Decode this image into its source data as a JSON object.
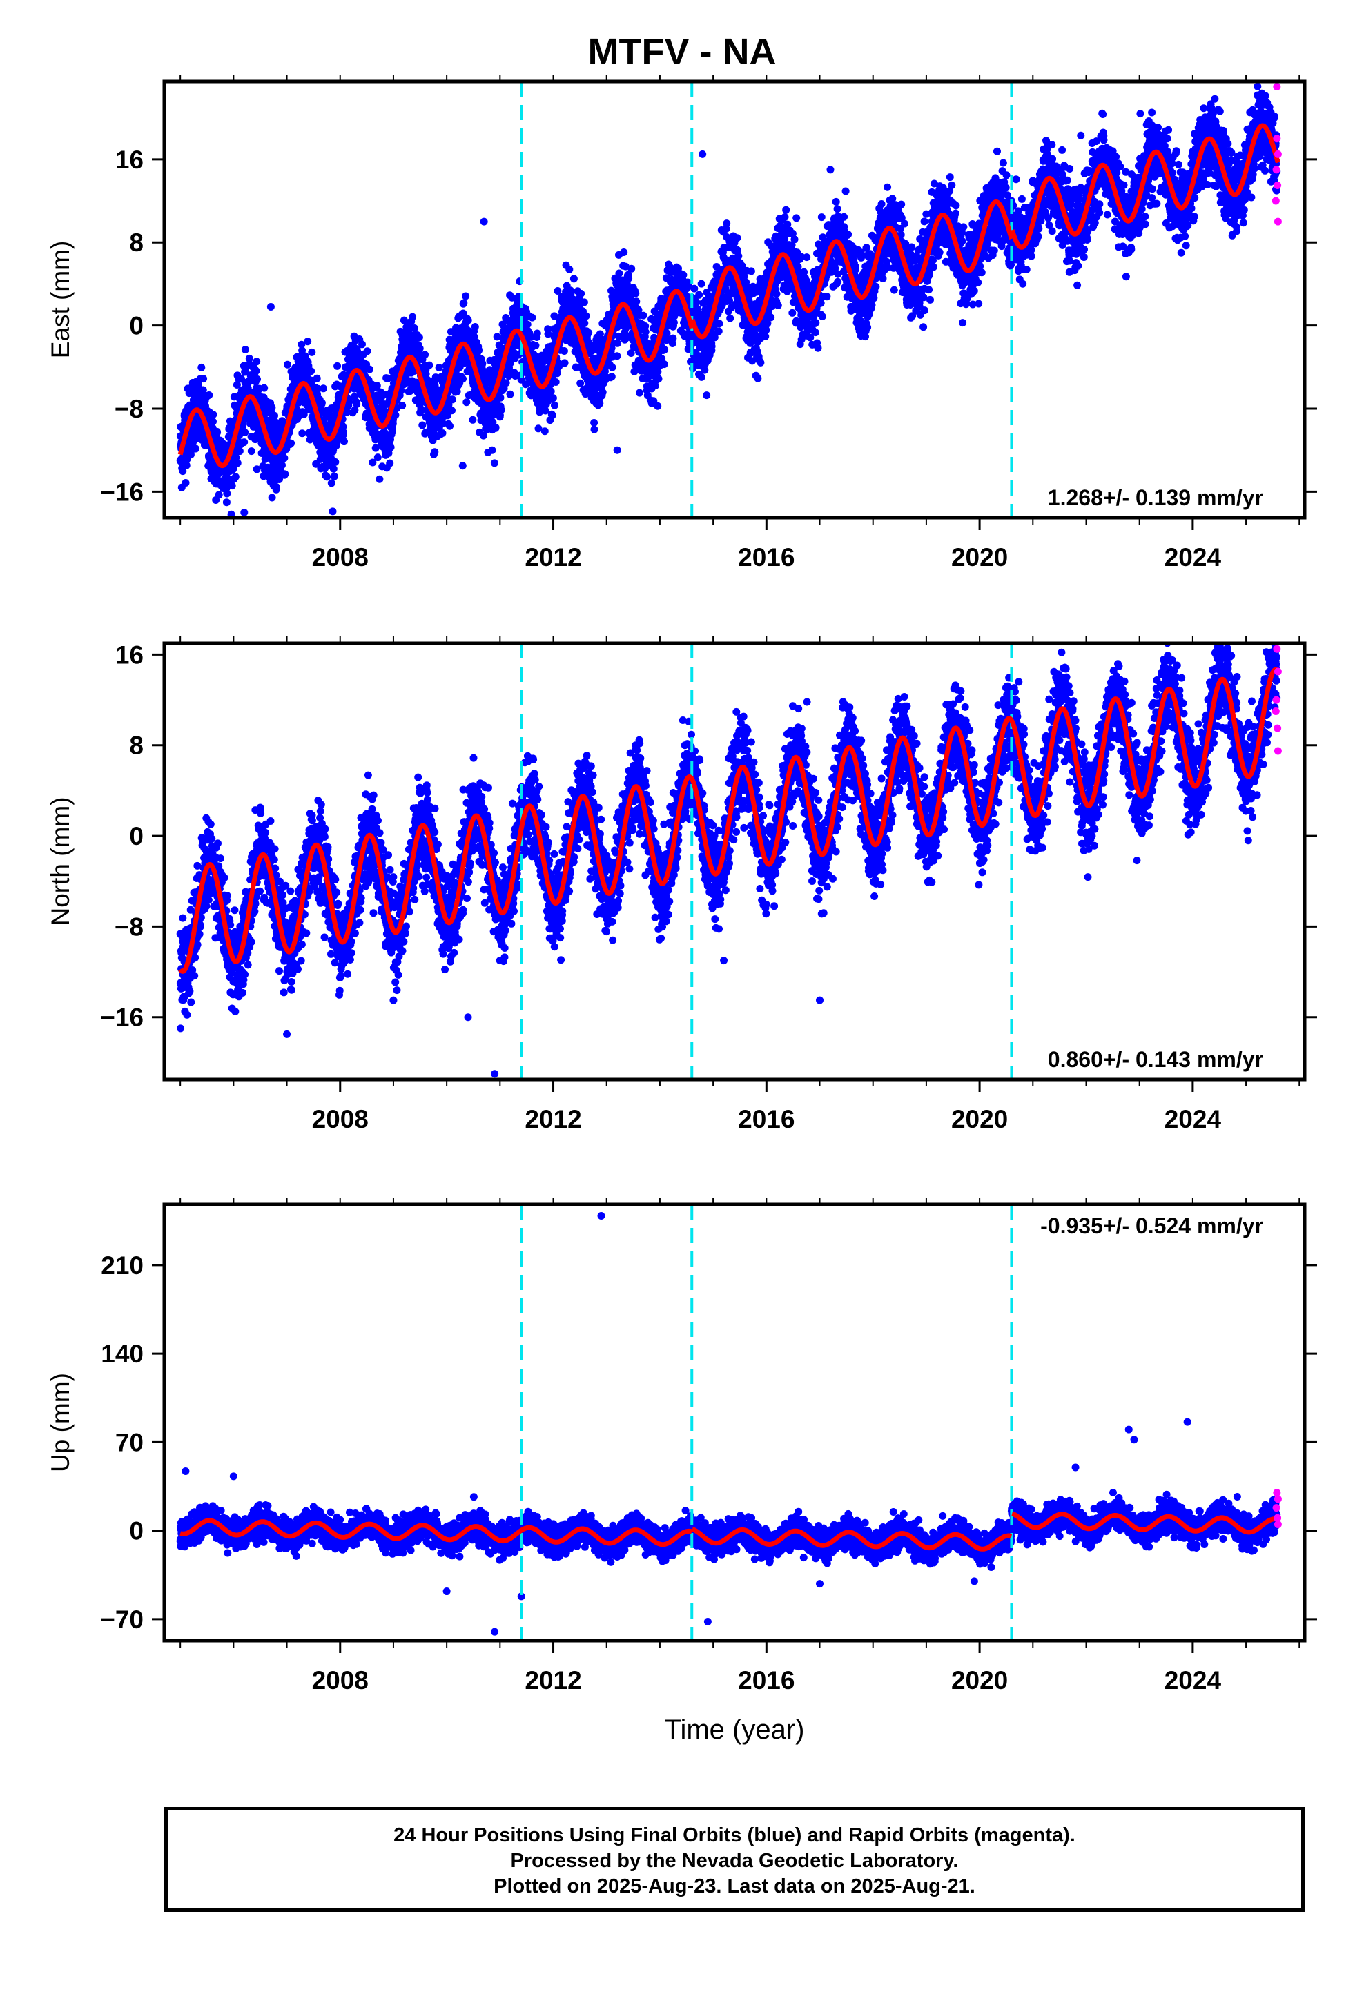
{
  "title": "MTFV - NA",
  "colors": {
    "final_orbits": "#0000ff",
    "rapid_orbits": "#ff00ff",
    "model_fit": "#ff0000",
    "offset_lines": "#00e5ee"
  },
  "chart_data": [
    {
      "type": "scatter",
      "name": "East",
      "ylabel": "East (mm)",
      "xlabel": "",
      "xlim": [
        2004.7,
        2026.1
      ],
      "ylim": [
        -18.5,
        23.5
      ],
      "yticks": [
        -16,
        -8,
        0,
        8,
        16
      ],
      "ytick_labels": [
        "−16",
        "−8",
        "0",
        "8",
        "16"
      ],
      "xticks": [
        2008,
        2012,
        2016,
        2020,
        2024
      ],
      "xtick_labels": [
        "2008",
        "2012",
        "2016",
        "2020",
        "2024"
      ],
      "offset_lines_x": [
        2011.4,
        2014.6,
        2020.6
      ],
      "velocity_label": "1.268+/- 0.139 mm/yr",
      "model": {
        "start_year": 2005.0,
        "end_year": 2025.6,
        "start_value": -11.5,
        "rate": 1.268,
        "amplitude": 3.0,
        "phase_year": 2005.3
      },
      "segment_shifts": [
        0,
        0,
        1.0,
        2.0
      ],
      "scatter_sd": 1.8,
      "outliers": [
        [
          2014.8,
          16.5
        ],
        [
          2017.2,
          15.0
        ],
        [
          2021.9,
          18.3
        ],
        [
          2010.7,
          10.0
        ],
        [
          2013.2,
          -12.0
        ],
        [
          2006.2,
          -18.0
        ],
        [
          2010.3,
          -13.5
        ],
        [
          2006.7,
          1.8
        ]
      ],
      "rapid_points": [
        [
          2025.58,
          23.0
        ],
        [
          2025.58,
          18.0
        ],
        [
          2025.6,
          16.5
        ],
        [
          2025.57,
          15.0
        ],
        [
          2025.59,
          13.5
        ],
        [
          2025.6,
          10.0
        ],
        [
          2025.56,
          12.0
        ]
      ]
    },
    {
      "type": "scatter",
      "name": "North",
      "ylabel": "North (mm)",
      "xlabel": "",
      "xlim": [
        2004.7,
        2026.1
      ],
      "ylim": [
        -21.5,
        17.0
      ],
      "yticks": [
        -16,
        -8,
        0,
        8,
        16
      ],
      "ytick_labels": [
        "−16",
        "−8",
        "0",
        "8",
        "16"
      ],
      "xticks": [
        2008,
        2012,
        2016,
        2020,
        2024
      ],
      "xtick_labels": [
        "2008",
        "2012",
        "2016",
        "2020",
        "2024"
      ],
      "offset_lines_x": [
        2011.4,
        2014.6,
        2020.6
      ],
      "velocity_label": "0.860+/- 0.143 mm/yr",
      "model": {
        "start_year": 2005.0,
        "end_year": 2025.6,
        "start_value": -7.5,
        "rate": 0.86,
        "amplitude": 4.5,
        "phase_year": 2005.55
      },
      "segment_shifts": [
        0,
        0,
        0,
        0
      ],
      "scatter_sd": 1.9,
      "outliers": [
        [
          2010.9,
          -21.0
        ],
        [
          2007.0,
          -17.5
        ],
        [
          2017.0,
          -14.5
        ],
        [
          2010.4,
          -16.0
        ],
        [
          2006.5,
          2.5
        ],
        [
          2015.2,
          -11.0
        ],
        [
          2009.0,
          -14.5
        ]
      ],
      "rapid_points": [
        [
          2025.58,
          16.5
        ],
        [
          2025.6,
          14.5
        ],
        [
          2025.57,
          12.0
        ],
        [
          2025.59,
          9.5
        ],
        [
          2025.6,
          7.5
        ],
        [
          2025.56,
          11.0
        ]
      ]
    },
    {
      "type": "scatter",
      "name": "Up",
      "ylabel": "Up (mm)",
      "xlabel": "Time (year)",
      "xlim": [
        2004.7,
        2026.1
      ],
      "ylim": [
        -87.0,
        258.0
      ],
      "yticks": [
        -70,
        0,
        70,
        140,
        210
      ],
      "ytick_labels": [
        "−70",
        "0",
        "70",
        "140",
        "210"
      ],
      "xticks": [
        2008,
        2012,
        2016,
        2020,
        2024
      ],
      "xtick_labels": [
        "2008",
        "2012",
        "2016",
        "2020",
        "2024"
      ],
      "offset_lines_x": [
        2011.4,
        2014.6,
        2020.6
      ],
      "velocity_label": "-0.935+/- 0.524 mm/yr",
      "model": {
        "start_year": 2005.0,
        "end_year": 2025.6,
        "start_value": 3.0,
        "rate": -0.935,
        "amplitude": 5.5,
        "phase_year": 2005.55
      },
      "segment_shifts": [
        0,
        0,
        2.0,
        20.0
      ],
      "scatter_sd": 5.5,
      "outliers": [
        [
          2012.9,
          249.0
        ],
        [
          2010.9,
          -80.0
        ],
        [
          2014.9,
          -72.0
        ],
        [
          2011.4,
          -52.0
        ],
        [
          2022.8,
          80.0
        ],
        [
          2023.9,
          86.0
        ],
        [
          2022.9,
          72.0
        ],
        [
          2010.0,
          -48.0
        ],
        [
          2005.1,
          47.0
        ],
        [
          2006.0,
          43.0
        ],
        [
          2017.0,
          -42.0
        ],
        [
          2021.8,
          50.0
        ],
        [
          2019.9,
          -40.0
        ]
      ],
      "rapid_points": [
        [
          2025.58,
          30.0
        ],
        [
          2025.6,
          25.0
        ],
        [
          2025.57,
          18.0
        ],
        [
          2025.59,
          10.0
        ],
        [
          2025.6,
          5.0
        ]
      ]
    }
  ],
  "footer": {
    "line1": "24 Hour Positions Using Final Orbits (blue) and Rapid Orbits (magenta).",
    "line2": "Processed by the Nevada Geodetic Laboratory.",
    "line3": "Plotted on 2025-Aug-23. Last data on 2025-Aug-21."
  }
}
